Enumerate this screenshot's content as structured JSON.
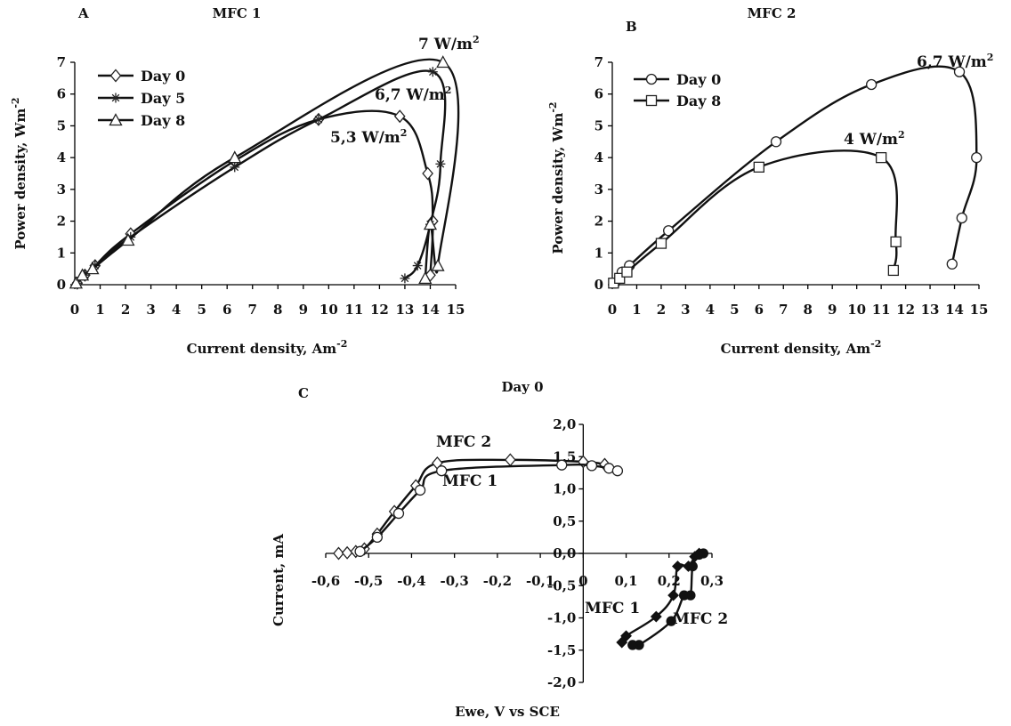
{
  "chart_data": [
    {
      "type": "line",
      "panel_letter": "A",
      "title": "MFC 1",
      "xlabel": "Current density, Am",
      "xlabel_sup": "-2",
      "ylabel": "Power density, Wm",
      "ylabel_sup": "-2",
      "xlim": [
        0,
        15
      ],
      "ylim": [
        0,
        7
      ],
      "xticks": [
        0,
        1,
        2,
        3,
        4,
        5,
        6,
        7,
        8,
        9,
        10,
        11,
        12,
        13,
        14,
        15
      ],
      "yticks": [
        0,
        1,
        2,
        3,
        4,
        5,
        6,
        7
      ],
      "legend_position": "top-left",
      "series": [
        {
          "name": "Day 0",
          "marker": "diamond",
          "x": [
            0.1,
            0.4,
            0.8,
            2.2,
            6.3,
            9.6,
            12.8,
            13.9,
            14.1,
            14.0
          ],
          "y": [
            0.05,
            0.3,
            0.6,
            1.6,
            3.9,
            5.2,
            5.3,
            3.5,
            2.0,
            0.3
          ]
        },
        {
          "name": "Day 5",
          "marker": "star",
          "x": [
            0.1,
            0.4,
            0.8,
            2.2,
            6.3,
            9.6,
            14.1,
            14.4,
            14.0,
            13.5,
            13.0
          ],
          "y": [
            0.05,
            0.3,
            0.6,
            1.5,
            3.7,
            5.2,
            6.7,
            3.8,
            1.9,
            0.6,
            0.2
          ]
        },
        {
          "name": "Day 8",
          "marker": "triangle",
          "x": [
            0.05,
            0.3,
            0.7,
            2.1,
            6.3,
            14.5,
            14.3,
            14.0,
            13.8
          ],
          "y": [
            0.05,
            0.3,
            0.5,
            1.4,
            4.0,
            7.0,
            0.6,
            1.9,
            0.2
          ]
        }
      ],
      "annotations": [
        {
          "text": "7 W/m",
          "sup": "2"
        },
        {
          "text": "6,7 W/m",
          "sup": "2"
        },
        {
          "text": "5,3 W/m",
          "sup": "2"
        }
      ]
    },
    {
      "type": "line",
      "panel_letter": "B",
      "title": "MFC 2",
      "xlabel": "Current density, Am",
      "xlabel_sup": "-2",
      "ylabel": "Power density, Wm",
      "ylabel_sup": "-2",
      "xlim": [
        0,
        15
      ],
      "ylim": [
        0,
        7
      ],
      "xticks": [
        0,
        1,
        2,
        3,
        4,
        5,
        6,
        7,
        8,
        9,
        10,
        11,
        12,
        13,
        14,
        15
      ],
      "yticks": [
        0,
        1,
        2,
        3,
        4,
        5,
        6,
        7
      ],
      "legend_position": "top-left",
      "series": [
        {
          "name": "Day 0",
          "marker": "circle",
          "x": [
            0.1,
            0.4,
            0.7,
            2.3,
            6.7,
            10.6,
            14.2,
            14.9,
            14.3,
            13.9
          ],
          "y": [
            0.05,
            0.4,
            0.6,
            1.7,
            4.5,
            6.3,
            6.7,
            4.0,
            2.1,
            0.65
          ]
        },
        {
          "name": "Day 8",
          "marker": "square",
          "x": [
            0.05,
            0.3,
            0.6,
            2.0,
            6.0,
            11.0,
            11.6,
            11.5
          ],
          "y": [
            0.05,
            0.2,
            0.4,
            1.3,
            3.7,
            4.0,
            1.35,
            0.45
          ]
        }
      ],
      "annotations": [
        {
          "text": "6,7 W/m",
          "sup": "2"
        },
        {
          "text": "4 W/m",
          "sup": "2"
        }
      ]
    },
    {
      "type": "line",
      "panel_letter": "C",
      "title": "Day 0",
      "xlabel": "Ewe, V vs SCE",
      "ylabel": "Current, mA",
      "xlim": [
        -0.6,
        0.3
      ],
      "ylim": [
        -2.0,
        2.0
      ],
      "xtick_labels": [
        "-0,6",
        "-0,5",
        "-0,4",
        "-0,3",
        "-0,2",
        "-0,1",
        "0",
        "0,1",
        "0,2",
        "0,3"
      ],
      "xtick_values": [
        -0.6,
        -0.5,
        -0.4,
        -0.3,
        -0.2,
        -0.1,
        0,
        0.1,
        0.2,
        0.3
      ],
      "ytick_labels": [
        "-2,0",
        "-1,5",
        "-1,0",
        "-0,5",
        "0,0",
        "0,5",
        "1,0",
        "1,5",
        "2,0"
      ],
      "ytick_values": [
        -2.0,
        -1.5,
        -1.0,
        -0.5,
        0.0,
        0.5,
        1.0,
        1.5,
        2.0
      ],
      "series": [
        {
          "name": "MFC 2",
          "marker": "diamond",
          "x": [
            -0.57,
            -0.55,
            -0.53,
            -0.51,
            -0.48,
            -0.44,
            -0.39,
            -0.34,
            -0.17,
            0.0,
            0.05
          ],
          "y": [
            0.0,
            0.01,
            0.03,
            0.07,
            0.3,
            0.65,
            1.05,
            1.4,
            1.45,
            1.42,
            1.38
          ]
        },
        {
          "name": "MFC 2",
          "marker": "circle",
          "x": [
            -0.52,
            -0.48,
            -0.43,
            -0.38,
            -0.33,
            -0.05,
            0.02,
            0.06,
            0.08
          ],
          "y": [
            0.03,
            0.25,
            0.62,
            0.98,
            1.28,
            1.37,
            1.36,
            1.32,
            1.28
          ]
        },
        {
          "name": "MFC 1",
          "marker": "diamond-filled",
          "x": [
            0.27,
            0.26,
            0.245,
            0.22,
            0.21,
            0.17,
            0.1,
            0.09
          ],
          "y": [
            0.0,
            -0.05,
            -0.2,
            -0.2,
            -0.65,
            -0.98,
            -1.28,
            -1.38
          ]
        },
        {
          "name": "MFC 2",
          "marker": "circle-filled",
          "x": [
            0.28,
            0.27,
            0.255,
            0.25,
            0.235,
            0.205,
            0.13,
            0.115
          ],
          "y": [
            0.0,
            -0.02,
            -0.2,
            -0.65,
            -0.65,
            -1.05,
            -1.42,
            -1.42
          ]
        }
      ],
      "annotations": [
        {
          "text": "MFC 2"
        },
        {
          "text": "MFC 1"
        },
        {
          "text": "MFC 1"
        },
        {
          "text": "MFC 2"
        }
      ]
    }
  ]
}
